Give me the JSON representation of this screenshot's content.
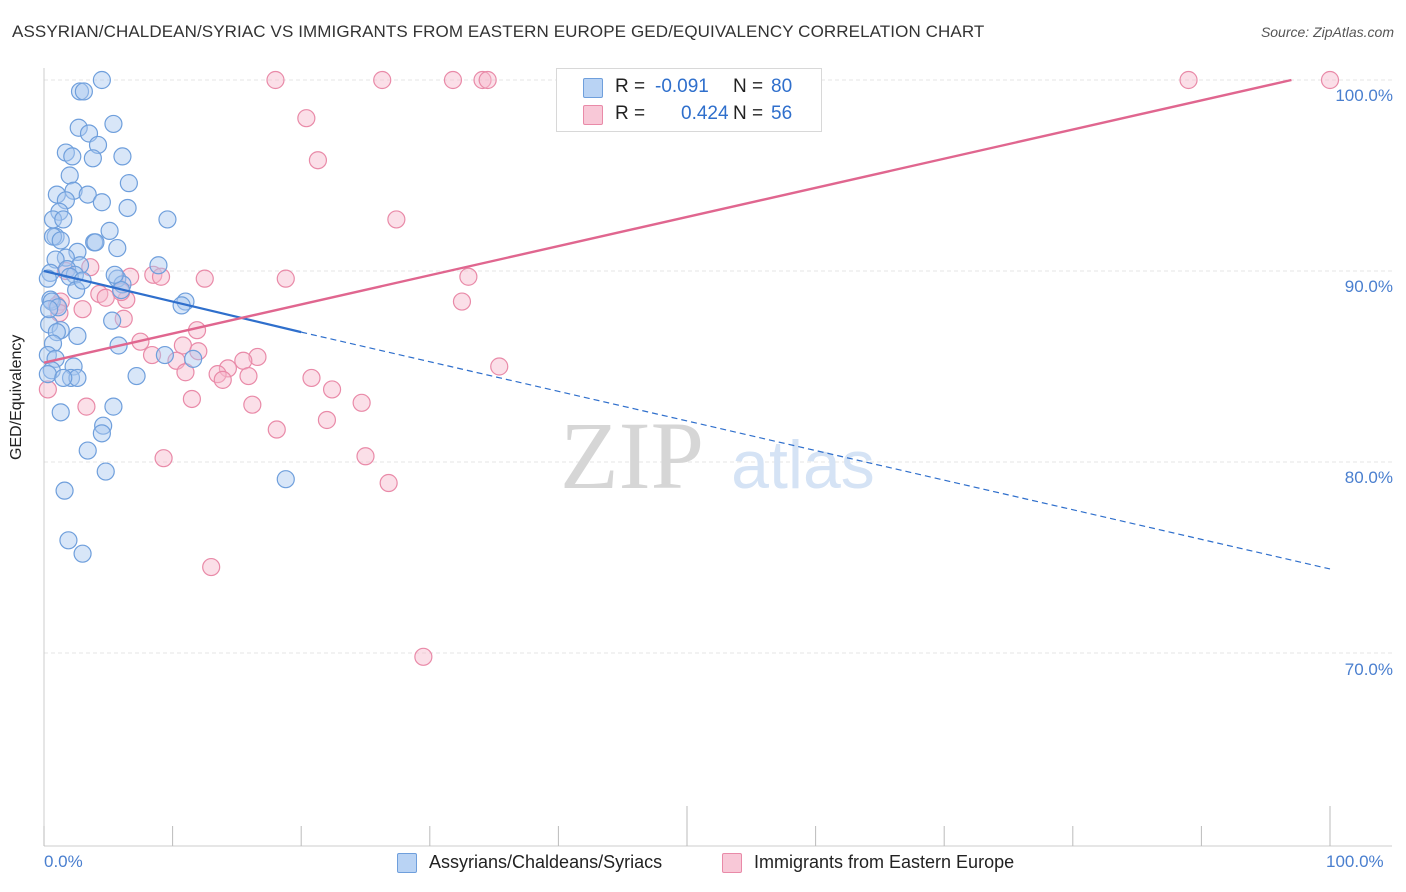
{
  "header": {
    "title": "ASSYRIAN/CHALDEAN/SYRIAC VS IMMIGRANTS FROM EASTERN EUROPE GED/EQUIVALENCY CORRELATION CHART",
    "source": "Source: ZipAtlas.com"
  },
  "watermark": {
    "zip": "ZIP",
    "atlas": "atlas"
  },
  "legend": {
    "rows": [
      {
        "r_label": "R =",
        "r_value": "-0.091",
        "n_label": "N =",
        "n_value": "80"
      },
      {
        "r_label": "R =",
        "r_value": "0.424",
        "n_label": "N =",
        "n_value": "56"
      }
    ]
  },
  "bottom_legend": [
    "Assyrians/Chaldeans/Syriacs",
    "Immigrants from Eastern Europe"
  ],
  "colors": {
    "blue_fill": "#a9c8f0",
    "blue_stroke": "#6f9fdc",
    "blue_line": "#2f6fcc",
    "pink_fill": "#f6b8cb",
    "pink_stroke": "#e98aa8",
    "pink_line": "#e0668f",
    "tick_label": "#4a7fcf",
    "grid": "#e4e4e4"
  },
  "chart_data": {
    "type": "scatter",
    "title": "ASSYRIAN/CHALDEAN/SYRIAC VS IMMIGRANTS FROM EASTERN EUROPE GED/EQUIVALENCY CORRELATION CHART",
    "xlabel": "",
    "ylabel": "GED/Equivalency",
    "x_tick_labels": [
      "0.0%",
      "100.0%"
    ],
    "y_tick_labels": [
      "100.0%",
      "90.0%",
      "80.0%",
      "70.0%"
    ],
    "y_ticks": [
      100,
      90,
      80,
      70
    ],
    "xlim": [
      0,
      100
    ],
    "ylim": [
      60,
      101.5
    ],
    "grid": true,
    "legend_position": "top-center",
    "series": [
      {
        "name": "Assyrians/Chaldeans/Syriacs",
        "r": -0.091,
        "n": 80,
        "trend": {
          "x0": 0,
          "y0": 90.0,
          "x1_solid": 20.0,
          "y1_solid": 86.8,
          "x1": 100.0,
          "y1": 74.4
        },
        "points": [
          [
            4.5,
            100.0
          ],
          [
            2.8,
            99.4
          ],
          [
            3.1,
            99.4
          ],
          [
            5.4,
            97.7
          ],
          [
            2.7,
            97.5
          ],
          [
            3.5,
            97.2
          ],
          [
            4.2,
            96.6
          ],
          [
            1.7,
            96.2
          ],
          [
            2.2,
            96.0
          ],
          [
            6.1,
            96.0
          ],
          [
            3.8,
            95.9
          ],
          [
            2.0,
            95.0
          ],
          [
            6.6,
            94.6
          ],
          [
            2.3,
            94.2
          ],
          [
            1.0,
            94.0
          ],
          [
            3.4,
            94.0
          ],
          [
            1.7,
            93.7
          ],
          [
            4.5,
            93.6
          ],
          [
            6.5,
            93.3
          ],
          [
            1.2,
            93.1
          ],
          [
            0.7,
            92.7
          ],
          [
            1.5,
            92.7
          ],
          [
            9.6,
            92.7
          ],
          [
            5.1,
            92.1
          ],
          [
            0.9,
            91.8
          ],
          [
            0.7,
            91.8
          ],
          [
            1.3,
            91.6
          ],
          [
            3.9,
            91.5
          ],
          [
            4.0,
            91.5
          ],
          [
            5.7,
            91.2
          ],
          [
            2.6,
            91.0
          ],
          [
            1.7,
            90.7
          ],
          [
            0.9,
            90.6
          ],
          [
            2.8,
            90.3
          ],
          [
            8.9,
            90.3
          ],
          [
            1.8,
            90.1
          ],
          [
            0.5,
            89.9
          ],
          [
            2.4,
            89.8
          ],
          [
            0.3,
            89.6
          ],
          [
            2.0,
            89.7
          ],
          [
            5.7,
            89.6
          ],
          [
            6.1,
            89.3
          ],
          [
            6.0,
            89.0
          ],
          [
            2.5,
            89.0
          ],
          [
            0.5,
            88.5
          ],
          [
            0.6,
            88.4
          ],
          [
            11.0,
            88.4
          ],
          [
            10.7,
            88.2
          ],
          [
            1.1,
            88.1
          ],
          [
            5.3,
            87.4
          ],
          [
            0.4,
            87.2
          ],
          [
            1.3,
            86.9
          ],
          [
            1.0,
            86.8
          ],
          [
            2.6,
            86.6
          ],
          [
            0.7,
            86.2
          ],
          [
            5.8,
            86.1
          ],
          [
            0.3,
            85.6
          ],
          [
            9.4,
            85.6
          ],
          [
            0.9,
            85.4
          ],
          [
            11.6,
            85.4
          ],
          [
            2.3,
            85.0
          ],
          [
            0.6,
            84.8
          ],
          [
            0.3,
            84.6
          ],
          [
            7.2,
            84.5
          ],
          [
            2.1,
            84.4
          ],
          [
            2.6,
            84.4
          ],
          [
            5.4,
            82.9
          ],
          [
            1.3,
            82.6
          ],
          [
            4.6,
            81.9
          ],
          [
            4.5,
            81.5
          ],
          [
            3.4,
            80.6
          ],
          [
            4.8,
            79.5
          ],
          [
            1.6,
            78.5
          ],
          [
            18.8,
            79.1
          ],
          [
            1.9,
            75.9
          ],
          [
            3.0,
            75.2
          ],
          [
            0.4,
            88.0
          ],
          [
            1.5,
            84.4
          ],
          [
            3.0,
            89.5
          ],
          [
            5.5,
            89.8
          ]
        ]
      },
      {
        "name": "Immigrants from Eastern Europe",
        "r": 0.424,
        "n": 56,
        "trend": {
          "x0": 0,
          "y0": 85.2,
          "x1": 97.0,
          "y1": 100.0
        },
        "points": [
          [
            18.0,
            100.0
          ],
          [
            26.3,
            100.0
          ],
          [
            31.8,
            100.0
          ],
          [
            34.1,
            100.0
          ],
          [
            34.5,
            100.0
          ],
          [
            89.0,
            100.0
          ],
          [
            100.0,
            100.0
          ],
          [
            20.4,
            98.0
          ],
          [
            21.3,
            95.8
          ],
          [
            27.4,
            92.7
          ],
          [
            3.6,
            90.2
          ],
          [
            1.7,
            90.0
          ],
          [
            8.5,
            89.8
          ],
          [
            6.7,
            89.7
          ],
          [
            9.1,
            89.7
          ],
          [
            18.8,
            89.6
          ],
          [
            12.5,
            89.6
          ],
          [
            33.0,
            89.7
          ],
          [
            4.3,
            88.8
          ],
          [
            4.8,
            88.6
          ],
          [
            1.3,
            88.4
          ],
          [
            6.4,
            88.5
          ],
          [
            32.5,
            88.4
          ],
          [
            1.0,
            88.2
          ],
          [
            6.2,
            87.5
          ],
          [
            1.2,
            87.8
          ],
          [
            11.9,
            86.9
          ],
          [
            7.5,
            86.3
          ],
          [
            10.8,
            86.1
          ],
          [
            8.4,
            85.6
          ],
          [
            16.6,
            85.5
          ],
          [
            15.5,
            85.3
          ],
          [
            10.3,
            85.3
          ],
          [
            14.3,
            84.9
          ],
          [
            11.0,
            84.7
          ],
          [
            35.4,
            85.0
          ],
          [
            13.5,
            84.6
          ],
          [
            15.9,
            84.5
          ],
          [
            20.8,
            84.4
          ],
          [
            13.9,
            84.3
          ],
          [
            22.4,
            83.8
          ],
          [
            11.5,
            83.3
          ],
          [
            24.7,
            83.1
          ],
          [
            16.2,
            83.0
          ],
          [
            3.3,
            82.9
          ],
          [
            22.0,
            82.2
          ],
          [
            18.1,
            81.7
          ],
          [
            0.3,
            83.8
          ],
          [
            9.3,
            80.2
          ],
          [
            25.0,
            80.3
          ],
          [
            26.8,
            78.9
          ],
          [
            13.0,
            74.5
          ],
          [
            29.5,
            69.8
          ],
          [
            3.0,
            88.0
          ],
          [
            6.0,
            88.9
          ],
          [
            12.0,
            85.8
          ]
        ]
      }
    ]
  }
}
